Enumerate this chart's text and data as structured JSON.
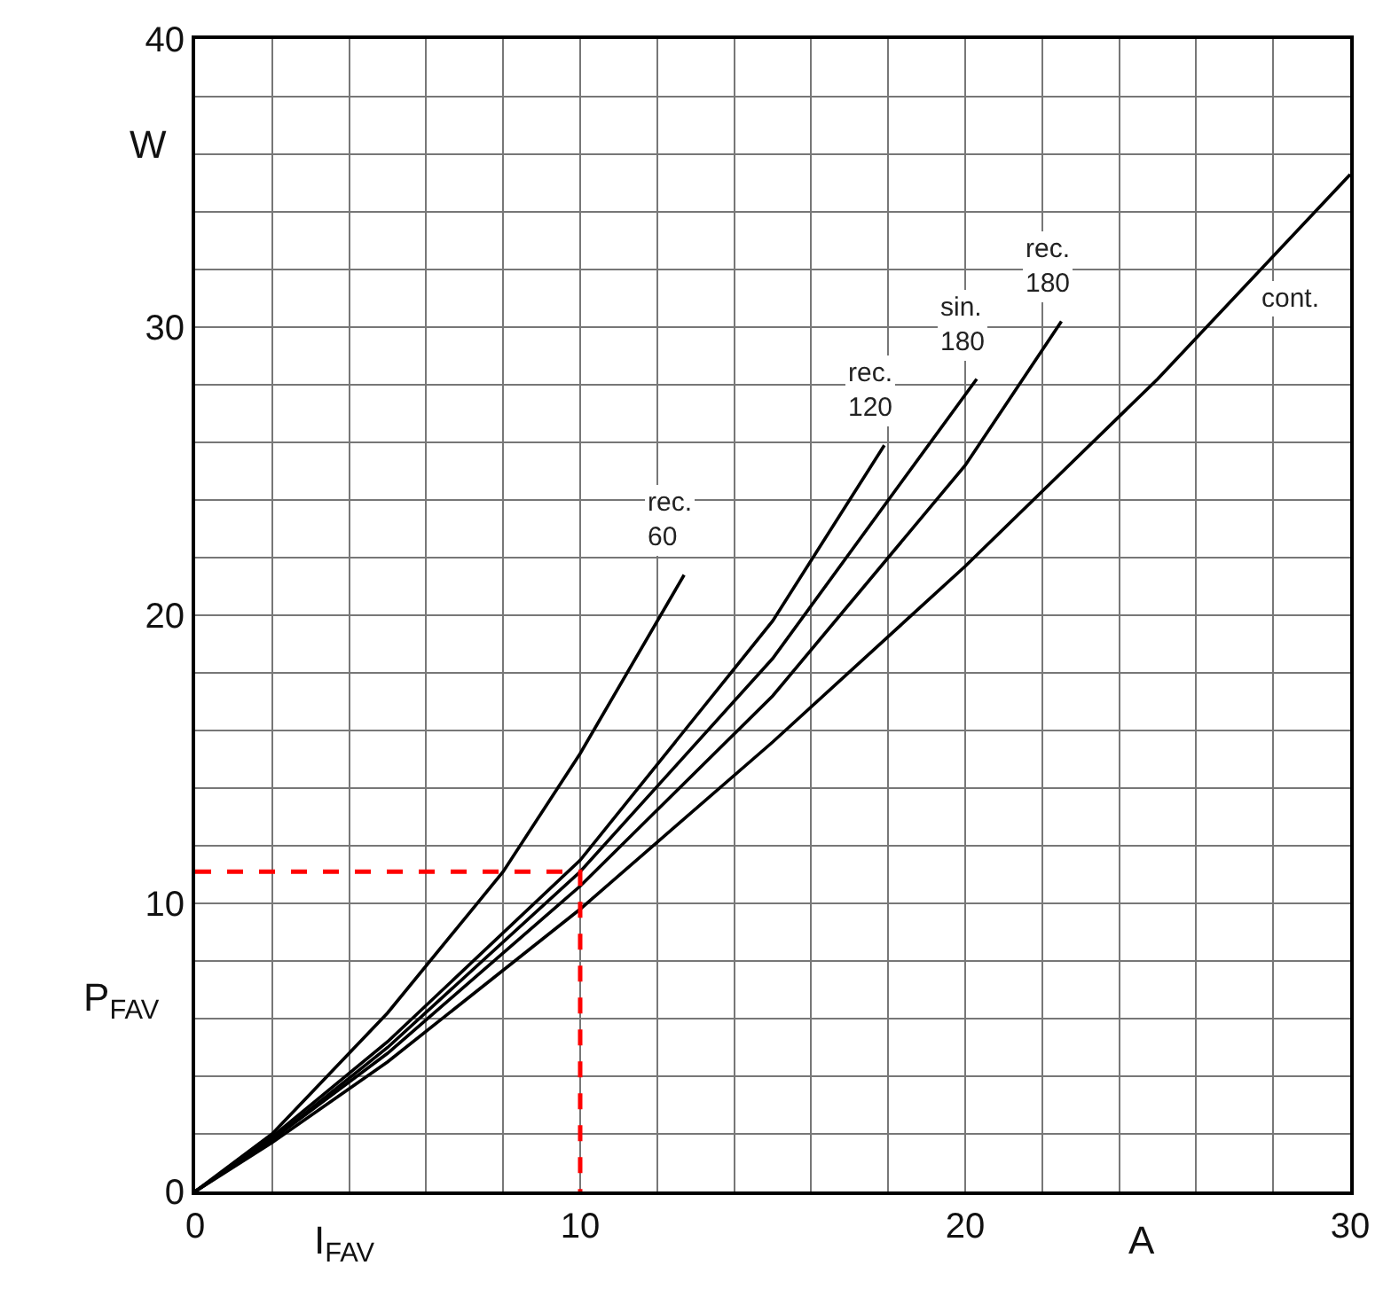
{
  "chart_data": {
    "type": "line",
    "xlabel": "I$_{FAV}$",
    "ylabel": "P$_{FAV}$",
    "annotations": [
      "A",
      "W"
    ],
    "xlim": [
      0,
      30
    ],
    "ylim": [
      0,
      40
    ],
    "xticks": [
      0,
      {
        "value": 2,
        "label": null
      },
      {
        "value": 4,
        "label": null
      },
      {
        "value": 6,
        "label": null
      },
      {
        "value": 8,
        "label": null
      },
      10,
      {
        "value": 12,
        "label": null
      },
      {
        "value": 14,
        "label": null
      },
      {
        "value": 16,
        "label": null
      },
      {
        "value": 18,
        "label": null
      },
      20,
      {
        "value": 22,
        "label": null
      },
      {
        "value": 24,
        "label": null
      },
      {
        "value": 26,
        "label": null
      },
      {
        "value": 28,
        "label": null
      },
      30
    ],
    "yticks": [
      0,
      {
        "value": 2,
        "label": null
      },
      {
        "value": 4,
        "label": null
      },
      {
        "value": 6,
        "label": null
      },
      {
        "value": 8,
        "label": null
      },
      10,
      {
        "value": 12,
        "label": null
      },
      {
        "value": 14,
        "label": null
      },
      {
        "value": 16,
        "label": null
      },
      {
        "value": 18,
        "label": null
      },
      20,
      {
        "value": 22,
        "label": null
      },
      {
        "value": 24,
        "label": null
      },
      {
        "value": 26,
        "label": null
      },
      {
        "value": 28,
        "label": null
      },
      30,
      {
        "value": 32,
        "label": null
      },
      {
        "value": 34,
        "label": null
      },
      {
        "value": 36,
        "label": null
      },
      {
        "value": 38,
        "label": null
      },
      40
    ],
    "grid": true,
    "marker": "none",
    "line_style": "solid",
    "series": [
      {
        "name": "rec. 60",
        "color": "#000000",
        "x": [
          0,
          2,
          5,
          8,
          10,
          12.7
        ],
        "values": [
          0,
          2.0,
          6.2,
          11.1,
          15.2,
          21.4
        ]
      },
      {
        "name": "rec. 120",
        "color": "#000000",
        "x": [
          0,
          2,
          5,
          10,
          15,
          17.9
        ],
        "values": [
          0,
          1.9,
          5.2,
          11.5,
          19.8,
          25.9
        ]
      },
      {
        "name": "sin. 180",
        "color": "#000000",
        "x": [
          0,
          2,
          5,
          10,
          15,
          20.3
        ],
        "values": [
          0,
          1.8,
          5.0,
          11.1,
          18.5,
          28.2
        ]
      },
      {
        "name": "rec. 180",
        "color": "#000000",
        "x": [
          0,
          2,
          5,
          10,
          15,
          20,
          22.5
        ],
        "values": [
          0,
          1.8,
          4.8,
          10.6,
          17.2,
          25.2,
          30.2
        ]
      },
      {
        "name": "cont.",
        "color": "#000000",
        "x": [
          0,
          2,
          5,
          10,
          15,
          20,
          25,
          30
        ],
        "values": [
          0,
          1.7,
          4.5,
          9.8,
          15.6,
          21.7,
          28.2,
          35.3
        ]
      },
      {
        "color": "#ff0000",
        "line_style": "dashed",
        "x": [
          0,
          10,
          10
        ],
        "values": [
          11.1,
          11.1,
          0
        ]
      }
    ]
  }
}
